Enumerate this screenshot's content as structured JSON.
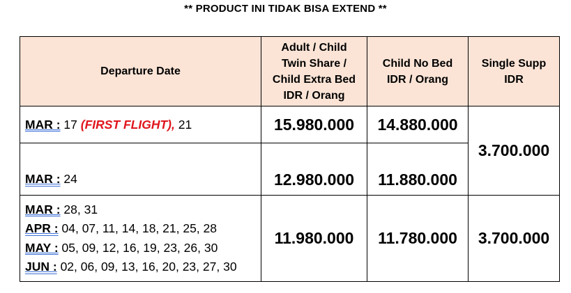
{
  "title": "** PRODUCT INI TIDAK BISA EXTEND **",
  "headers": {
    "departure": "Departure Date",
    "adult_1": "Adult / Child",
    "adult_2": "Twin Share /",
    "adult_3": "Child Extra Bed",
    "adult_4": "IDR / Orang",
    "cnb_1": "Child No Bed",
    "cnb_2": "IDR / Orang",
    "single_1": "Single Supp",
    "single_2": "IDR"
  },
  "rows": [
    {
      "month": "MAR :",
      "dates_before": " 17 ",
      "note": "(FIRST FLIGHT),",
      "dates_after": " 21",
      "adult": "15.980.000",
      "child_no_bed": "14.880.000"
    },
    {
      "month": "MAR :",
      "dates": " 24",
      "adult": "12.980.000",
      "child_no_bed": "11.880.000"
    },
    {
      "lines": [
        {
          "month": "MAR :",
          "dates": " 28, 31"
        },
        {
          "month": "APR :",
          "dates": " 04, 07, 11, 14, 18, 21, 25, 28"
        },
        {
          "month": "MAY :",
          "dates": " 05, 09, 12, 16, 19, 23, 26, 30"
        },
        {
          "month": "JUN :",
          "dates": " 02, 06, 09, 13, 16, 20, 23, 27, 30"
        }
      ],
      "adult": "11.980.000",
      "child_no_bed": "11.780.000",
      "single": "3.700.000"
    }
  ],
  "single_merged": "3.700.000"
}
